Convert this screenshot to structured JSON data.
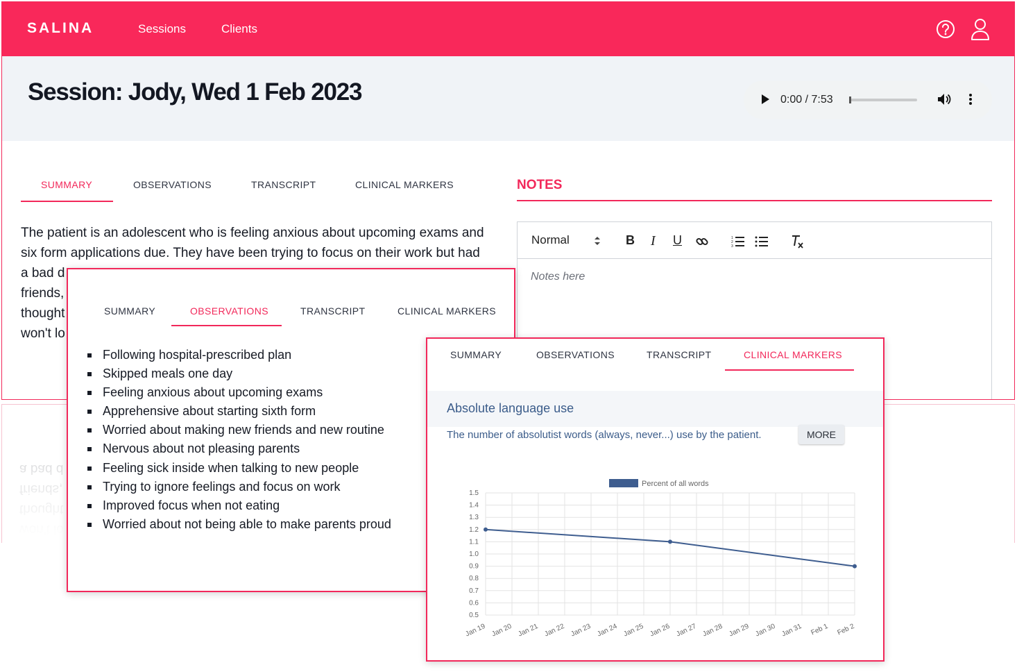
{
  "app": {
    "logo": "SALINA",
    "nav": [
      "Sessions",
      "Clients"
    ],
    "session_title": "Session: Jody, Wed 1 Feb 2023"
  },
  "audio": {
    "time": "0:00 / 7:53",
    "progress": 0
  },
  "tabs": [
    "SUMMARY",
    "OBSERVATIONS",
    "TRANSCRIPT",
    "CLINICAL MARKERS"
  ],
  "notes": {
    "heading": "NOTES",
    "style_select": "Normal",
    "placeholder": "Notes here"
  },
  "summary": {
    "lines": [
      "The patient is an adolescent who is feeling anxious about upcoming exams and",
      "six form applications due. They have been trying to focus on their work but had",
      "a bad d",
      "friends,",
      "thought",
      "won't lo"
    ]
  },
  "observations": [
    "Following hospital-prescribed plan",
    "Skipped meals one day",
    "Feeling anxious about upcoming exams",
    "Apprehensive about starting sixth form",
    "Worried about making new friends and new routine",
    "Nervous about not pleasing parents",
    "Feeling sick inside when talking to new people",
    "Trying to ignore feelings and focus on work",
    "Improved focus when not eating",
    "Worried about not being able to make parents proud"
  ],
  "clinical_markers": {
    "title": "Absolute language use",
    "description": "The number of absolutist words (always, never...) use by the patient.",
    "more_label": "MORE"
  },
  "colors": {
    "brand": "#f9285a",
    "accent": "#f2285a",
    "series": "#3e5d8f",
    "header_band": "#f0f3f7"
  },
  "chart_data": {
    "type": "line",
    "title": "",
    "xlabel": "",
    "ylabel": "",
    "categories": [
      "Jan 19",
      "Jan 20",
      "Jan 21",
      "Jan 22",
      "Jan 23",
      "Jan 24",
      "Jan 25",
      "Jan 26",
      "Jan 27",
      "Jan 28",
      "Jan 29",
      "Jan 30",
      "Jan 31",
      "Feb 1",
      "Feb 2"
    ],
    "series": [
      {
        "name": "Percent of all words",
        "points": [
          {
            "x": "Jan 19",
            "y": 1.2
          },
          {
            "x": "Jan 26",
            "y": 1.1
          },
          {
            "x": "Feb 2",
            "y": 0.9
          }
        ]
      }
    ],
    "ylim": [
      0.5,
      1.5
    ],
    "yticks": [
      "1.5",
      "1.4",
      "1.3",
      "1.2",
      "1.1",
      "1.0",
      "0.9",
      "0.8",
      "0.7",
      "0.6",
      "0.5"
    ],
    "grid": true,
    "legend": "top"
  }
}
